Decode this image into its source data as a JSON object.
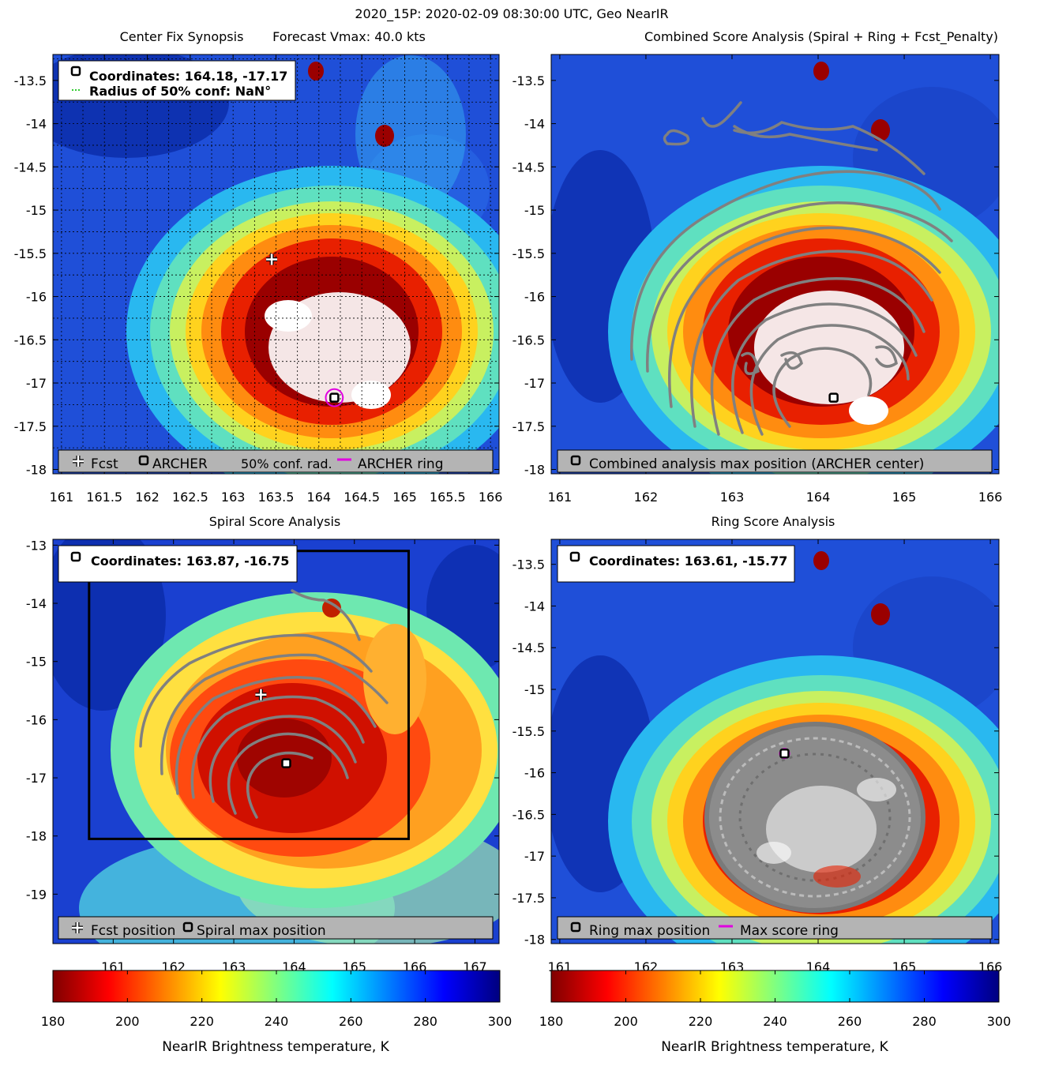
{
  "figure": {
    "main_title": "2020_15P: 2020-02-09 08:30:00 UTC, Geo NearIR",
    "colors": {
      "ring": "#e000e0",
      "contour": "#808080",
      "legend_bg": "#b4b4b4",
      "conf": "#33cc33"
    }
  },
  "chart_data": [
    {
      "type": "heatmap",
      "id": "synopsis",
      "title": "Center Fix Synopsis",
      "subtitle": "Forecast Vmax: 40.0 kts",
      "xlim": [
        160.9,
        166.1
      ],
      "ylim": [
        -18.05,
        -13.2
      ],
      "xticks": [
        161,
        161.5,
        162,
        162.5,
        163,
        163.5,
        164,
        164.5,
        165,
        165.5,
        166
      ],
      "xtick_labels": [
        "161",
        "161.5",
        "162",
        "162.5",
        "163",
        "163.5",
        "164",
        "164.5",
        "165",
        "165.5",
        "166"
      ],
      "yticks": [
        -13.5,
        -14,
        -14.5,
        -15,
        -15.5,
        -16,
        -16.5,
        -17,
        -17.5,
        -18
      ],
      "ytick_labels": [
        "-13.5",
        "-14",
        "-14.5",
        "-15",
        "-15.5",
        "-16",
        "-16.5",
        "-17",
        "-17.5",
        "-18"
      ],
      "grid": true,
      "info_box": {
        "lines": [
          "Coordinates: 164.18, -17.17",
          "Radius of 50% conf: NaN°"
        ]
      },
      "legend": {
        "items": [
          "Fcst",
          "ARCHER",
          "50% conf. rad.",
          "ARCHER ring"
        ],
        "location": "bottom"
      },
      "fcst_position": [
        163.45,
        -15.57
      ],
      "center_position": [
        164.18,
        -17.17
      ],
      "ring_radius_deg": 0.1
    },
    {
      "type": "heatmap",
      "id": "combined",
      "title": "Combined Score Analysis (Spiral + Ring + Fcst_Penalty)",
      "xlim": [
        160.9,
        166.1
      ],
      "ylim": [
        -18.05,
        -13.2
      ],
      "xticks": [
        161,
        162,
        163,
        164,
        165,
        166
      ],
      "xtick_labels": [
        "161",
        "162",
        "163",
        "164",
        "165",
        "166"
      ],
      "yticks": [
        -13.5,
        -14,
        -14.5,
        -15,
        -15.5,
        -16,
        -16.5,
        -17,
        -17.5,
        -18
      ],
      "ytick_labels": [
        "-13.5",
        "-14",
        "-14.5",
        "-15",
        "-15.5",
        "-16",
        "-16.5",
        "-17",
        "-17.5",
        "-18"
      ],
      "grid": false,
      "legend": {
        "items": [
          "Combined analysis max position (ARCHER center)"
        ],
        "location": "bottom"
      },
      "center_position": [
        164.18,
        -17.17
      ]
    },
    {
      "type": "heatmap",
      "id": "spiral",
      "title": "Spiral Score Analysis",
      "xlim": [
        160.0,
        167.4
      ],
      "ylim": [
        -19.85,
        -12.9
      ],
      "xticks": [
        161,
        162,
        163,
        164,
        165,
        166,
        167
      ],
      "xtick_labels": [
        "161",
        "162",
        "163",
        "164",
        "165",
        "166",
        "167"
      ],
      "yticks": [
        -13,
        -14,
        -15,
        -16,
        -17,
        -18,
        -19
      ],
      "ytick_labels": [
        "-13",
        "-14",
        "-15",
        "-16",
        "-17",
        "-18",
        "-19"
      ],
      "grid": false,
      "info_box": {
        "lines": [
          "Coordinates: 163.87, -16.75"
        ]
      },
      "legend": {
        "items": [
          "Fcst position",
          "Spiral max position"
        ],
        "location": "bottom"
      },
      "fcst_position": [
        163.45,
        -15.57
      ],
      "center_position": [
        163.87,
        -16.75
      ],
      "search_box": {
        "x": [
          160.6,
          165.9
        ],
        "y": [
          -18.05,
          -13.1
        ]
      }
    },
    {
      "type": "heatmap",
      "id": "ring",
      "title": "Ring Score Analysis",
      "xlim": [
        160.9,
        166.1
      ],
      "ylim": [
        -18.05,
        -13.2
      ],
      "xticks": [
        161,
        162,
        163,
        164,
        165,
        166
      ],
      "xtick_labels": [
        "161",
        "162",
        "163",
        "164",
        "165",
        "166"
      ],
      "yticks": [
        -13.5,
        -14,
        -14.5,
        -15,
        -15.5,
        -16,
        -16.5,
        -17,
        -17.5,
        -18
      ],
      "ytick_labels": [
        "-13.5",
        "-14",
        "-14.5",
        "-15",
        "-15.5",
        "-16",
        "-16.5",
        "-17",
        "-17.5",
        "-18"
      ],
      "grid": false,
      "info_box": {
        "lines": [
          "Coordinates: 163.61, -15.77"
        ]
      },
      "legend": {
        "items": [
          "Ring max position",
          "Max score ring"
        ],
        "location": "bottom"
      },
      "center_position": [
        163.61,
        -15.77
      ]
    }
  ],
  "colorbars": [
    {
      "ticks": [
        180,
        200,
        220,
        240,
        260,
        280,
        300
      ],
      "tick_labels": [
        "180",
        "200",
        "220",
        "240",
        "260",
        "280",
        "300"
      ],
      "range": [
        180,
        300
      ],
      "label": "NearIR Brightness temperature, K"
    },
    {
      "ticks": [
        180,
        200,
        220,
        240,
        260,
        280,
        300
      ],
      "tick_labels": [
        "180",
        "200",
        "220",
        "240",
        "260",
        "280",
        "300"
      ],
      "range": [
        180,
        300
      ],
      "label": "NearIR Brightness temperature, K"
    }
  ]
}
